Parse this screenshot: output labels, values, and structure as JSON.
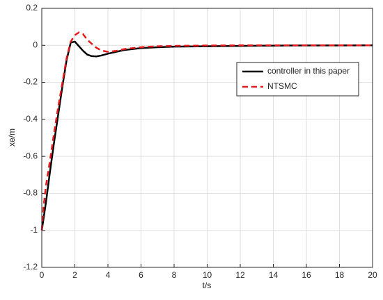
{
  "chart_data": {
    "type": "line",
    "xlabel": "t/s",
    "ylabel": "xe/m",
    "x": [
      0,
      0.1,
      0.25,
      0.5,
      0.75,
      1,
      1.25,
      1.5,
      1.75,
      2,
      2.25,
      2.5,
      2.75,
      3,
      3.3,
      3.6,
      4,
      4.5,
      5,
      6,
      7,
      8,
      10,
      12,
      15,
      20
    ],
    "series": [
      {
        "name": "controller in this paper",
        "color": "#000000",
        "linestyle": "solid",
        "values": [
          -1,
          -0.94,
          -0.85,
          -0.68,
          -0.52,
          -0.37,
          -0.22,
          -0.08,
          0.015,
          0.02,
          -0.005,
          -0.03,
          -0.05,
          -0.058,
          -0.06,
          -0.055,
          -0.045,
          -0.035,
          -0.025,
          -0.015,
          -0.01,
          -0.007,
          -0.005,
          -0.003,
          -0.001,
          0
        ]
      },
      {
        "name": "NTSMC",
        "color": "#e41a1c",
        "linestyle": "dashed",
        "values": [
          -1,
          -0.88,
          -0.76,
          -0.62,
          -0.47,
          -0.33,
          -0.2,
          -0.07,
          0.02,
          0.055,
          0.07,
          0.06,
          0.03,
          0.01,
          -0.013,
          -0.028,
          -0.035,
          -0.03,
          -0.02,
          -0.01,
          -0.005,
          -0.003,
          -0.001,
          0,
          0,
          0
        ]
      }
    ],
    "xlim": [
      0,
      20
    ],
    "xticks": [
      0,
      2,
      4,
      6,
      8,
      10,
      12,
      14,
      16,
      18,
      20
    ],
    "ylim": [
      -1.2,
      0.2
    ],
    "yticks": [
      -1.2,
      -1,
      -0.8,
      -0.6,
      -0.4,
      -0.2,
      0,
      0.2
    ],
    "grid": true,
    "legend": "upper right"
  }
}
